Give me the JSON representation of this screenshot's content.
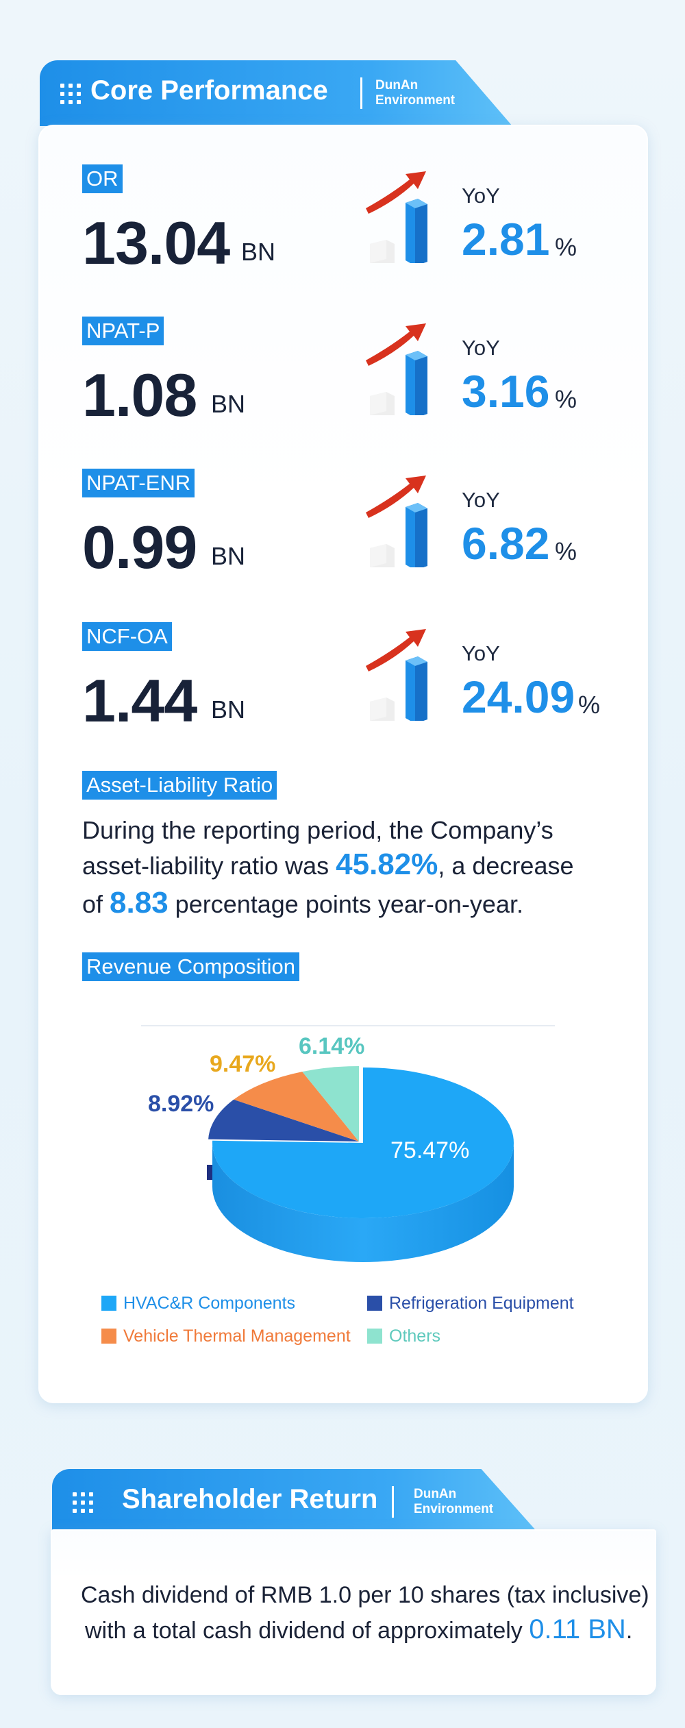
{
  "core": {
    "title": "Core Performance",
    "brand_line1": "DunAn",
    "brand_line2": "Environment",
    "metrics": [
      {
        "label": "OR",
        "value": "13.04",
        "unit": "BN",
        "yoy_label": "YoY",
        "yoy_value": "2.81",
        "yoy_unit": "%"
      },
      {
        "label": "NPAT-P",
        "value": "1.08",
        "unit": "BN",
        "yoy_label": "YoY",
        "yoy_value": "3.16",
        "yoy_unit": "%"
      },
      {
        "label": "NPAT-ENR",
        "value": "0.99",
        "unit": "BN",
        "yoy_label": "YoY",
        "yoy_value": "6.82",
        "yoy_unit": "%"
      },
      {
        "label": "NCF-OA",
        "value": "1.44",
        "unit": "BN",
        "yoy_label": "YoY",
        "yoy_value": "24.09",
        "yoy_unit": "%"
      }
    ],
    "alr": {
      "label": "Asset-Liability Ratio",
      "line1": "During the reporting period, the Company’s",
      "line2_pre": "asset-liability ratio was ",
      "line2_value": "45.82%",
      "line2_post": ", a decrease",
      "line3_pre": "of ",
      "line3_value": "8.83",
      "line3_post": " percentage points year-on-year."
    },
    "revenue_label": "Revenue Composition"
  },
  "chart_data": {
    "type": "pie",
    "title": "",
    "slices": [
      {
        "name": "HVAC&R Components",
        "value": 75.47,
        "label": "75.47%",
        "color": "#1ea7f7"
      },
      {
        "name": "Refrigeration Equipment",
        "value": 8.92,
        "label": "8.92%",
        "color": "#2a4fa8"
      },
      {
        "name": "Vehicle Thermal Management",
        "value": 9.47,
        "label": "9.47%",
        "color": "#f58c4a"
      },
      {
        "name": "Others",
        "value": 6.14,
        "label": "6.14%",
        "color": "#8ee3cf"
      }
    ],
    "legend_position": "bottom",
    "label_colors": {
      "HVAC&R Components": "#ffffff",
      "Refrigeration Equipment": "#2a4fa8",
      "Vehicle Thermal Management": "#e8a81e",
      "Others": "#58c6c0"
    }
  },
  "shareholder": {
    "title": "Shareholder Return",
    "brand_line1": "DunAn",
    "brand_line2": "Environment",
    "line1": "Cash dividend of RMB 1.0 per 10 shares (tax inclusive)",
    "line2_pre": "with a total cash dividend of approximately ",
    "line2_value": "0.11 BN",
    "line2_post": "."
  }
}
